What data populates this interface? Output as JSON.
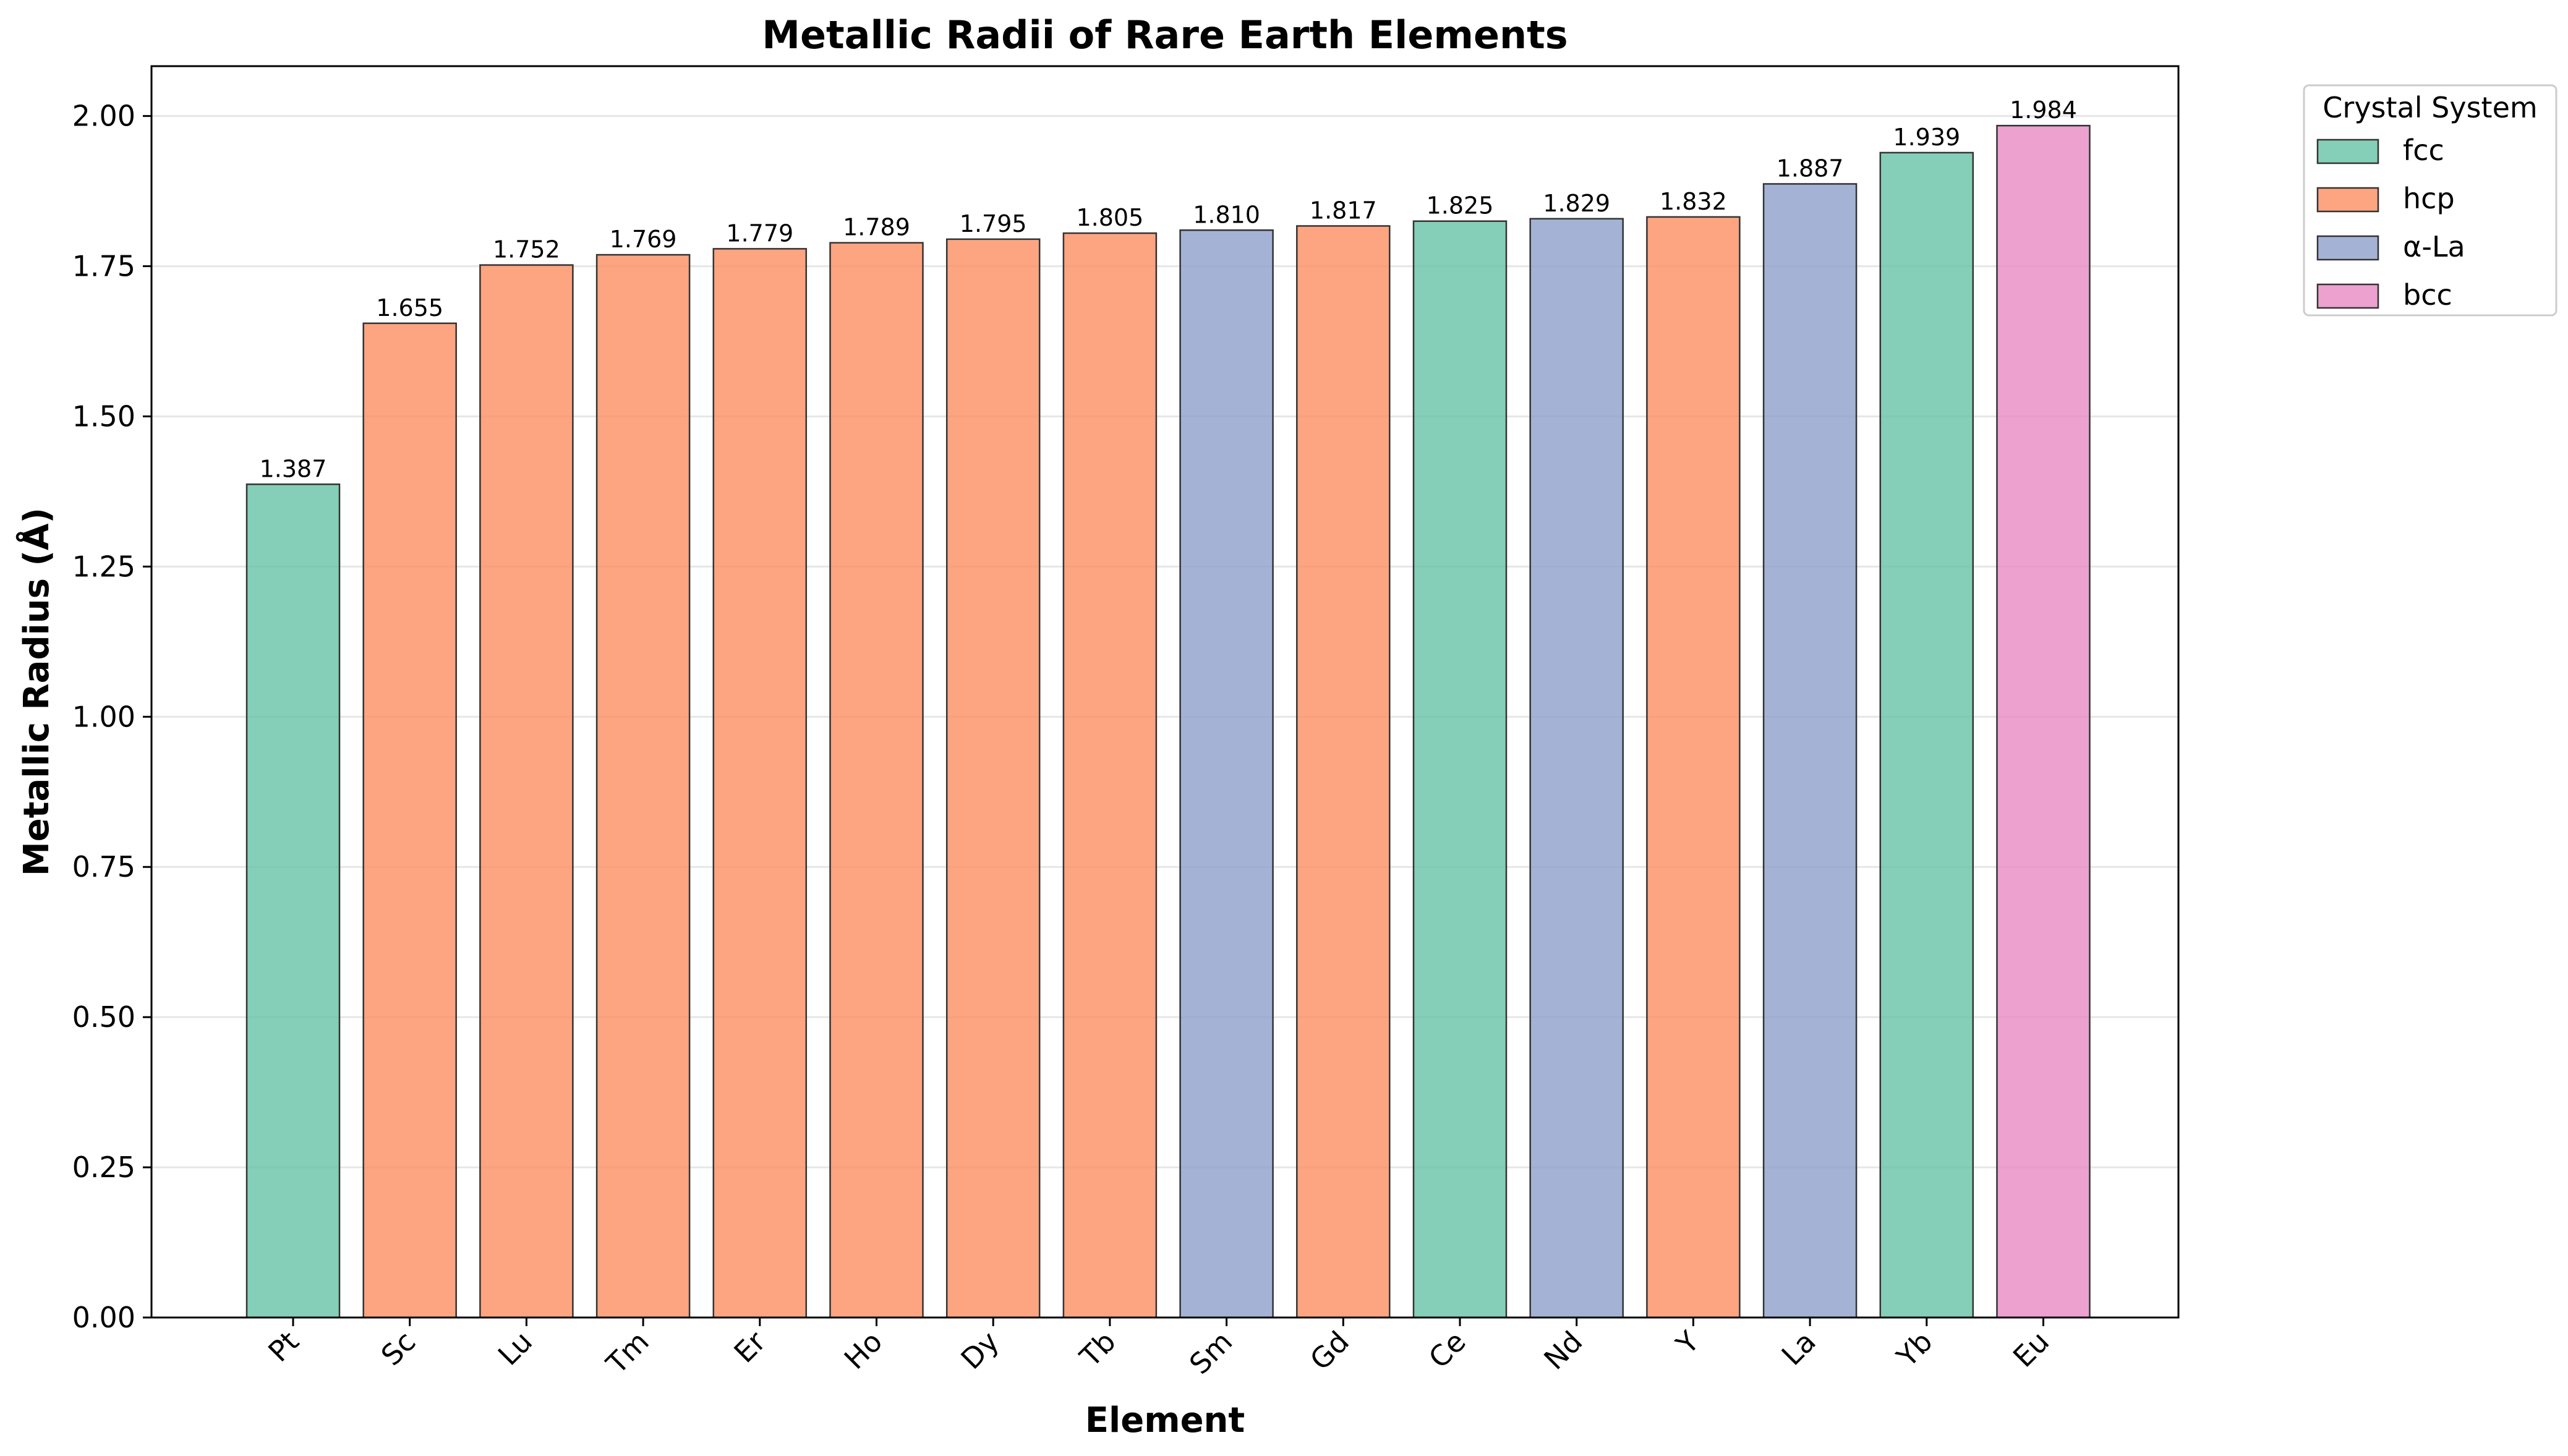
{
  "chart_data": {
    "type": "bar",
    "title": "Metallic Radii of Rare Earth Elements",
    "xlabel": "Element",
    "ylabel": "Metallic Radius (Å)",
    "ylim": [
      0,
      2.083
    ],
    "yticks": [
      "0.00",
      "0.25",
      "0.50",
      "0.75",
      "1.00",
      "1.25",
      "1.50",
      "1.75",
      "2.00"
    ],
    "grid": "y",
    "legend": {
      "title": "Crystal System",
      "placement": "outside-top-right",
      "entries": [
        {
          "label": "fcc",
          "color": "#66c2a5"
        },
        {
          "label": "hcp",
          "color": "#fc8d62"
        },
        {
          "label": "α-La",
          "color": "#8da0cb"
        },
        {
          "label": "bcc",
          "color": "#e78ac3"
        }
      ]
    },
    "categories": [
      "Pt",
      "Sc",
      "Lu",
      "Tm",
      "Er",
      "Ho",
      "Dy",
      "Tb",
      "Sm",
      "Gd",
      "Ce",
      "Nd",
      "Y",
      "La",
      "Yb",
      "Eu"
    ],
    "values": [
      1.387,
      1.655,
      1.752,
      1.769,
      1.779,
      1.789,
      1.795,
      1.805,
      1.81,
      1.817,
      1.825,
      1.829,
      1.832,
      1.887,
      1.939,
      1.984
    ],
    "value_labels": [
      "1.387",
      "1.655",
      "1.752",
      "1.769",
      "1.779",
      "1.789",
      "1.795",
      "1.805",
      "1.810",
      "1.817",
      "1.825",
      "1.829",
      "1.832",
      "1.887",
      "1.939",
      "1.984"
    ],
    "crystal_system": [
      "fcc",
      "hcp",
      "hcp",
      "hcp",
      "hcp",
      "hcp",
      "hcp",
      "hcp",
      "α-La",
      "hcp",
      "fcc",
      "α-La",
      "hcp",
      "α-La",
      "fcc",
      "bcc"
    ]
  }
}
